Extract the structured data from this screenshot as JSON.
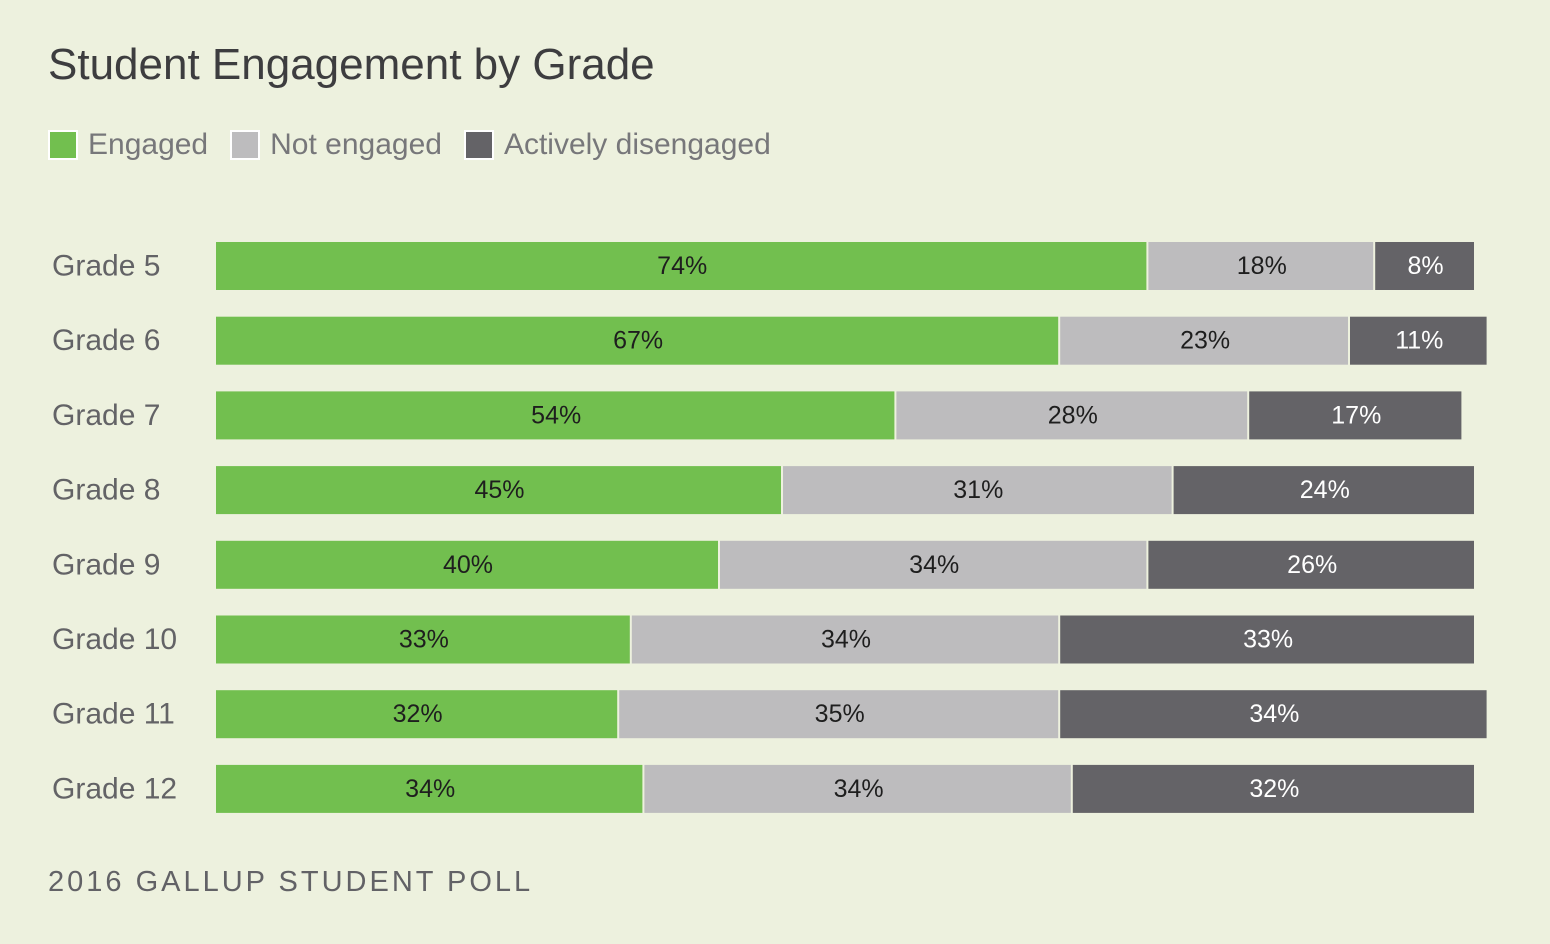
{
  "title": "Student Engagement by Grade",
  "source": "2016 GALLUP STUDENT POLL",
  "colors": {
    "engaged": "#72bf4f",
    "not_engaged": "#bdbcbe",
    "actively_disengaged": "#646367",
    "background": "#edf1de"
  },
  "legend": [
    {
      "label": "Engaged",
      "color": "#72bf4f"
    },
    {
      "label": "Not engaged",
      "color": "#bdbcbe"
    },
    {
      "label": "Actively disengaged",
      "color": "#646367"
    }
  ],
  "chart_data": {
    "type": "bar",
    "orientation": "horizontal",
    "stacked": true,
    "title": "Student Engagement by Grade",
    "categories": [
      "Grade 5",
      "Grade 6",
      "Grade 7",
      "Grade 8",
      "Grade 9",
      "Grade 10",
      "Grade 11",
      "Grade 12"
    ],
    "series": [
      {
        "name": "Engaged",
        "color": "#72bf4f",
        "label_color": "#1e1e1e",
        "values": [
          74,
          67,
          54,
          45,
          40,
          33,
          32,
          34
        ],
        "labels": [
          "74%",
          "67%",
          "54%",
          "45%",
          "40%",
          "33%",
          "32%",
          "34%"
        ]
      },
      {
        "name": "Not engaged",
        "color": "#bdbcbe",
        "label_color": "#1e1e1e",
        "values": [
          18,
          23,
          28,
          31,
          34,
          34,
          35,
          34
        ],
        "labels": [
          "18%",
          "23%",
          "28%",
          "31%",
          "34%",
          "34%",
          "35%",
          "34%"
        ]
      },
      {
        "name": "Actively disengaged",
        "color": "#646367",
        "label_color": "#ffffff",
        "values": [
          8,
          11,
          17,
          24,
          26,
          33,
          34,
          32
        ],
        "labels": [
          "8%",
          "11%",
          "17%",
          "24%",
          "26%",
          "33%",
          "34%",
          "32%"
        ]
      }
    ],
    "legend_position": "top-left",
    "grid": false
  }
}
